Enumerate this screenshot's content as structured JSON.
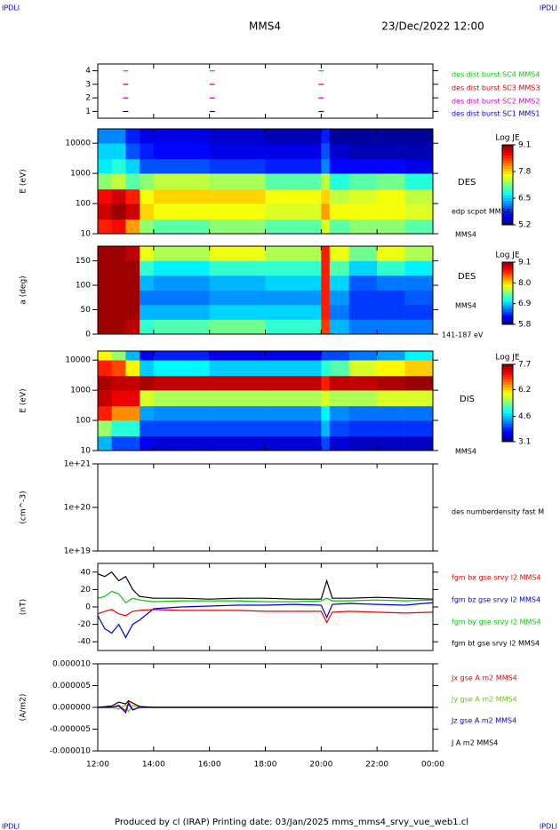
{
  "header": {
    "left": "IPDLI",
    "title": "MMS4",
    "date": "23/Dec/2022 12:00",
    "right": "IPDLI"
  },
  "footer": {
    "text": "Produced by cl (IRAP)   Printing date: 03/Jan/2025   mms_mms4_srvy_vue_web1.cl",
    "left": "IPDLI",
    "right": "IPDLI"
  },
  "chart_data": [
    {
      "type": "scatter",
      "xlim": [
        12,
        24
      ],
      "ylim": [
        0.5,
        4.5
      ],
      "yticks": [
        1,
        2,
        3,
        4
      ],
      "series": [
        {
          "name": "des dist burst SC1 MMS1",
          "color": "#0000cc",
          "x": [
            13.0,
            16.1,
            20.0
          ],
          "values": [
            1,
            1,
            1
          ]
        },
        {
          "name": "des dist burst SC2 MMS2",
          "color": "#cc00cc",
          "x": [
            13.0,
            16.1,
            20.0
          ],
          "values": [
            2,
            2,
            2
          ]
        },
        {
          "name": "des dist burst SC3 MMS3",
          "color": "#dd0000",
          "x": [
            13.0,
            16.1,
            20.0
          ],
          "values": [
            3,
            3,
            3
          ]
        },
        {
          "name": "des dist burst SC4 MMS4",
          "color": "#00cc00",
          "x": [
            13.0,
            16.1,
            20.0
          ],
          "values": [
            4,
            4,
            4
          ]
        }
      ]
    },
    {
      "type": "heatmap",
      "ylabel": "E (eV)",
      "log_y": true,
      "xlim": [
        12,
        24
      ],
      "ylim": [
        10,
        30000
      ],
      "yticks": [
        10,
        100,
        1000,
        10000
      ],
      "xbins": [
        12,
        12.5,
        13,
        13.5,
        14,
        16,
        18,
        20,
        20.3,
        21,
        22,
        23,
        24
      ],
      "ybins": [
        10,
        30,
        100,
        300,
        1000,
        3000,
        10000,
        30000
      ],
      "z": [
        [
          8.5,
          8.6,
          8.0,
          7.2,
          7.0,
          7.2,
          7.0,
          7.5,
          7.0,
          7.2,
          7.2,
          7.0
        ],
        [
          8.8,
          9.0,
          8.8,
          7.8,
          7.6,
          7.6,
          7.5,
          8.0,
          7.6,
          7.6,
          7.6,
          7.5
        ],
        [
          8.6,
          8.8,
          8.5,
          7.6,
          7.8,
          7.8,
          7.6,
          7.8,
          7.4,
          7.5,
          7.6,
          7.4
        ],
        [
          7.2,
          7.4,
          7.0,
          7.2,
          7.4,
          7.3,
          7.0,
          7.4,
          6.8,
          7.0,
          7.1,
          6.8
        ],
        [
          6.6,
          6.8,
          6.5,
          6.0,
          6.0,
          5.9,
          5.8,
          6.2,
          5.7,
          5.7,
          5.7,
          5.6
        ],
        [
          6.5,
          6.5,
          6.0,
          5.8,
          5.7,
          5.6,
          5.6,
          6.0,
          5.5,
          5.4,
          5.4,
          5.4
        ],
        [
          6.2,
          6.2,
          5.8,
          5.6,
          5.6,
          5.5,
          5.4,
          5.8,
          5.3,
          5.3,
          5.3,
          5.3
        ]
      ],
      "colorbar": {
        "label": "Log JE",
        "clim": [
          5.2,
          9.1
        ],
        "ticks": [
          9.1,
          7.8,
          6.5,
          5.2
        ]
      },
      "annotations": [
        "DES",
        "edp scpot MMS4",
        "MMS4"
      ]
    },
    {
      "type": "heatmap",
      "ylabel": "a (deg)",
      "log_y": false,
      "xlim": [
        12,
        24
      ],
      "ylim": [
        0,
        180
      ],
      "yticks": [
        0,
        50,
        100,
        150
      ],
      "xbins": [
        12,
        12.5,
        13,
        13.5,
        14,
        16,
        18,
        20,
        20.3,
        21,
        22,
        23,
        24
      ],
      "ybins": [
        0,
        30,
        60,
        90,
        120,
        150,
        180
      ],
      "z": [
        [
          9.0,
          9.0,
          8.9,
          7.2,
          7.3,
          7.4,
          7.2,
          8.5,
          6.8,
          6.6,
          6.6,
          6.6
        ],
        [
          9.0,
          9.0,
          9.0,
          6.8,
          6.8,
          6.9,
          6.9,
          8.6,
          6.6,
          6.4,
          6.4,
          6.4
        ],
        [
          9.0,
          9.0,
          9.0,
          6.6,
          6.6,
          6.7,
          6.7,
          8.6,
          6.7,
          6.4,
          6.4,
          6.5
        ],
        [
          9.0,
          9.0,
          9.0,
          6.8,
          6.7,
          6.8,
          6.9,
          8.6,
          6.9,
          6.5,
          6.6,
          6.6
        ],
        [
          9.0,
          9.0,
          9.0,
          7.2,
          7.0,
          7.2,
          7.2,
          8.6,
          7.3,
          6.9,
          7.2,
          7.0
        ],
        [
          9.0,
          9.0,
          8.9,
          7.8,
          7.6,
          7.8,
          7.6,
          8.6,
          7.8,
          7.4,
          7.8,
          7.6
        ]
      ],
      "colorbar": {
        "label": "Log JE",
        "clim": [
          5.8,
          9.1
        ],
        "ticks": [
          9.1,
          {
            "value": 8,
            "label": "8.0"
          },
          6.9,
          5.8
        ]
      },
      "annotations": [
        "DES",
        "MMS4",
        "141-187 eV"
      ]
    },
    {
      "type": "heatmap",
      "ylabel": "E (eV)",
      "log_y": true,
      "xlim": [
        12,
        24
      ],
      "ylim": [
        10,
        20000
      ],
      "yticks": [
        10,
        100,
        1000,
        10000
      ],
      "xbins": [
        12,
        12.5,
        13,
        13.5,
        14,
        16,
        18,
        20,
        20.3,
        21,
        22,
        23,
        24
      ],
      "ybins": [
        10,
        30,
        100,
        300,
        1000,
        3000,
        10000,
        20000
      ],
      "z": [
        [
          4.5,
          4.0,
          4.0,
          3.6,
          3.5,
          3.5,
          3.5,
          4.0,
          3.5,
          3.4,
          3.4,
          3.4
        ],
        [
          5.5,
          5.0,
          5.0,
          4.0,
          4.0,
          4.0,
          4.0,
          4.5,
          4.0,
          3.9,
          3.9,
          3.9
        ],
        [
          7.0,
          6.5,
          6.5,
          4.4,
          4.3,
          4.3,
          4.3,
          4.8,
          4.3,
          4.2,
          4.2,
          4.2
        ],
        [
          7.4,
          7.2,
          7.2,
          5.8,
          5.6,
          5.6,
          5.6,
          5.8,
          5.6,
          5.6,
          5.8,
          5.8
        ],
        [
          7.5,
          7.4,
          7.4,
          7.5,
          7.4,
          7.4,
          7.4,
          7.0,
          7.4,
          7.4,
          7.5,
          7.6
        ],
        [
          7.0,
          6.8,
          6.0,
          4.6,
          4.8,
          4.6,
          4.6,
          5.0,
          5.2,
          5.8,
          6.0,
          6.2
        ],
        [
          6.0,
          5.5,
          4.5,
          3.6,
          3.8,
          3.6,
          3.6,
          4.0,
          4.0,
          4.2,
          4.4,
          4.8
        ]
      ],
      "colorbar": {
        "label": "Log JE",
        "clim": [
          3.1,
          7.7
        ],
        "ticks": [
          7.7,
          6.2,
          4.6,
          3.1
        ]
      },
      "annotations": [
        "DIS",
        "MMS4"
      ]
    },
    {
      "type": "line",
      "ylabel": "(cm^-3)",
      "log_y": true,
      "xlim": [
        12,
        24
      ],
      "ylim": [
        1e+19,
        1e+21
      ],
      "yticks": [
        {
          "value": 1e+19,
          "label": "1e+19"
        },
        {
          "value": 1e+20,
          "label": "1e+20"
        },
        {
          "value": 1e+21,
          "label": "1e+21"
        }
      ],
      "annotations": [
        "des numberdensity fast M"
      ]
    },
    {
      "type": "line",
      "ylabel": "(nT)",
      "xlim": [
        12,
        24
      ],
      "ylim": [
        -50,
        50
      ],
      "yticks": [
        -40,
        -20,
        0,
        20,
        40
      ],
      "x": [
        12,
        12.25,
        12.5,
        12.75,
        13,
        13.25,
        13.5,
        14,
        15,
        16,
        17,
        18,
        19,
        20,
        20.2,
        20.4,
        21,
        22,
        23,
        24
      ],
      "series": [
        {
          "name": "fgm bt gse srvy l2 MMS4",
          "color": "#000000",
          "values": [
            38,
            35,
            40,
            30,
            35,
            20,
            12,
            10,
            10,
            9,
            10,
            10,
            9,
            9,
            30,
            10,
            10,
            11,
            10,
            9
          ]
        },
        {
          "name": "fgm by gse srvy l2 MMS4",
          "color": "#00cc00",
          "values": [
            10,
            12,
            18,
            15,
            5,
            10,
            8,
            6,
            7,
            7,
            7,
            6,
            6,
            7,
            10,
            7,
            7,
            8,
            7,
            8
          ]
        },
        {
          "name": "fgm bz gse srvy l2 MMS4",
          "color": "#0000dd",
          "values": [
            -10,
            -25,
            -30,
            -20,
            -35,
            -20,
            -15,
            -2,
            0,
            1,
            2,
            2,
            3,
            2,
            -12,
            3,
            4,
            3,
            2,
            5
          ]
        },
        {
          "name": "fgm bx gse srvy l2 MMS4",
          "color": "#ee0000",
          "values": [
            -8,
            -5,
            -3,
            -8,
            -10,
            -5,
            -4,
            -3,
            -4,
            -4,
            -4,
            -5,
            -5,
            -5,
            -18,
            -6,
            -5,
            -6,
            -7,
            -6
          ]
        }
      ]
    },
    {
      "type": "line",
      "ylabel": "(A/m2)",
      "xlim": [
        12,
        24
      ],
      "ylim": [
        -1e-05,
        1e-05
      ],
      "yticks": [
        {
          "value": -1e-05,
          "label": "-0.000010"
        },
        {
          "value": -5e-06,
          "label": "-0.000005"
        },
        {
          "value": 0,
          "label": "0.000000"
        },
        {
          "value": 5e-06,
          "label": "0.000005"
        },
        {
          "value": 1e-05,
          "label": "0.000010"
        }
      ],
      "xticks": [
        {
          "value": 12,
          "label": "12:00"
        },
        {
          "value": 14,
          "label": "14:00"
        },
        {
          "value": 16,
          "label": "16:00"
        },
        {
          "value": 18,
          "label": "18:00"
        },
        {
          "value": 20,
          "label": "20:00"
        },
        {
          "value": 22,
          "label": "22:00"
        },
        {
          "value": 24,
          "label": "00:00"
        }
      ],
      "x": [
        12,
        12.5,
        12.75,
        13,
        13.1,
        13.25,
        13.5,
        14,
        16,
        18,
        20,
        22,
        24
      ],
      "series": [
        {
          "name": "Jx gse A m2 MMS4",
          "color": "#ee0000",
          "values": [
            0,
            0,
            5e-07,
            -8e-07,
            1.2e-06,
            -5e-07,
            0,
            0,
            0,
            0,
            0,
            0,
            0
          ]
        },
        {
          "name": "Jy gse A m2 MMS4",
          "color": "#66cc00",
          "values": [
            0,
            0,
            -4e-07,
            6e-07,
            -1e-06,
            4e-07,
            0,
            0,
            0,
            0,
            0,
            0,
            0
          ]
        },
        {
          "name": "Jz gse A m2 MMS4",
          "color": "#0000dd",
          "values": [
            0,
            0,
            3e-07,
            -1.2e-06,
            8e-07,
            -6e-07,
            0,
            0,
            0,
            0,
            0,
            0,
            0
          ]
        },
        {
          "name": "J A m2 MMS4",
          "color": "#000000",
          "values": [
            0,
            3e-07,
            1.2e-06,
            8e-07,
            1.5e-06,
            1e-06,
            2e-07,
            0,
            0,
            0,
            0,
            0,
            0
          ]
        }
      ]
    }
  ]
}
